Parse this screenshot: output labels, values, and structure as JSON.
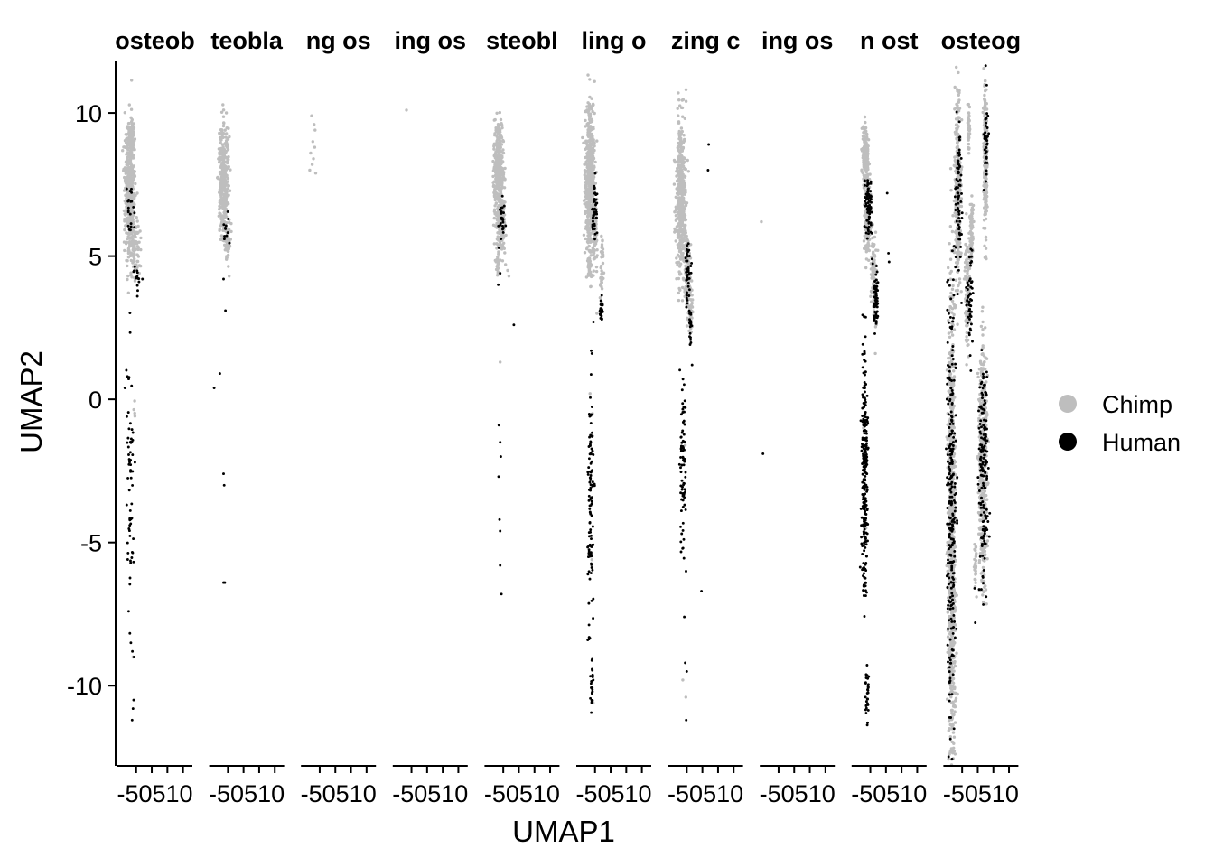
{
  "chart_data": {
    "type": "scatter",
    "title": "",
    "xlabel": "UMAP1",
    "ylabel": "UMAP2",
    "facets": [
      "osteob",
      "teobla",
      "ng os",
      "ing os",
      "steobl",
      "ling o",
      "zing c",
      "ing os",
      "n ost",
      "osteog"
    ],
    "x_ticks": [
      -5,
      0,
      5,
      10
    ],
    "x_tick_text": "-50510",
    "y_ticks": [
      -10,
      -5,
      0,
      5,
      10
    ],
    "y_tick_labels": [
      "-10",
      "-5",
      "0",
      "5",
      "10"
    ],
    "ylim": [
      -12.8,
      11.8
    ],
    "xlim": [
      -11,
      13
    ],
    "legend": {
      "position": "right",
      "entries": [
        {
          "name": "Chimp",
          "color": "#BEBEBE"
        },
        {
          "name": "Human",
          "color": "#000000"
        }
      ]
    },
    "series": [
      {
        "name": "Chimp",
        "color": "#BEBEBE",
        "panels": [
          {
            "clusters": [
              [
                -7,
                7.2,
                1.4,
                1.9,
                420
              ],
              [
                -5.5,
                5.4,
                1.5,
                0.9,
                90
              ],
              [
                -6.5,
                9.2,
                0.8,
                0.5,
                60
              ],
              [
                -5.8,
                -0.3,
                0.4,
                0.6,
                4
              ]
            ],
            "points": [
              [
                -4.6,
                5.8
              ],
              [
                -4.0,
                4.4
              ],
              [
                -6.0,
                -9.0
              ]
            ]
          },
          {
            "clusters": [
              [
                -6.3,
                7.6,
                1.3,
                1.7,
                360
              ],
              [
                -5.0,
                5.6,
                0.9,
                0.8,
                60
              ]
            ],
            "points": [
              [
                -4.6,
                4.3
              ]
            ]
          },
          {
            "clusters": [],
            "points": [
              [
                -7.6,
                9.9
              ],
              [
                -6.8,
                9.6
              ],
              [
                -6.5,
                9.4
              ],
              [
                -7.2,
                9.0
              ],
              [
                -7.9,
                8.6
              ],
              [
                -6.6,
                8.8
              ],
              [
                -7.4,
                8.2
              ],
              [
                -6.3,
                7.9
              ],
              [
                -8.2,
                8.0
              ],
              [
                -7.0,
                8.4
              ]
            ]
          },
          {
            "clusters": [],
            "points": [
              [
                -6.6,
                10.1
              ]
            ]
          },
          {
            "clusters": [
              [
                -6.4,
                7.8,
                1.3,
                1.8,
                380
              ],
              [
                -5.3,
                6.0,
                0.9,
                0.9,
                70
              ],
              [
                -6.8,
                4.8,
                0.6,
                0.5,
                25
              ]
            ],
            "points": [
              [
                -6.0,
                1.3
              ],
              [
                -3.6,
                4.5
              ],
              [
                -3.2,
                4.3
              ]
            ]
          },
          {
            "clusters": [
              [
                -6.6,
                7.8,
                1.3,
                2.2,
                520
              ],
              [
                -5.0,
                5.8,
                0.8,
                1.0,
                70
              ],
              [
                -2.8,
                4.6,
                0.5,
                1.0,
                40
              ],
              [
                -6.6,
                4.6,
                0.6,
                0.5,
                30
              ]
            ],
            "points": [
              [
                -5.8,
                -0.5
              ],
              [
                -6.6,
                0.2
              ],
              [
                -4.4,
                3.0
              ],
              [
                -6.0,
                -5.6
              ],
              [
                -5.6,
                -10.6
              ]
            ]
          },
          {
            "clusters": [
              [
                -6.9,
                7.2,
                1.3,
                2.4,
                460
              ],
              [
                -4.9,
                4.4,
                0.9,
                1.1,
                110
              ],
              [
                -3.8,
                3.2,
                0.6,
                0.8,
                60
              ]
            ],
            "points": [
              [
                -6.0,
                -0.8
              ],
              [
                -5.5,
                -1.6
              ],
              [
                -6.3,
                -9.8
              ],
              [
                -5.3,
                -10.4
              ]
            ]
          },
          {
            "clusters": [],
            "points": [
              [
                -10.5,
                6.2
              ]
            ]
          },
          {
            "clusters": [
              [
                -6.6,
                8.6,
                0.9,
                0.8,
                150
              ],
              [
                -6.0,
                6.5,
                0.8,
                1.2,
                140
              ],
              [
                -4.0,
                4.6,
                0.8,
                1.2,
                70
              ],
              [
                -3.4,
                3.2,
                0.5,
                0.6,
                30
              ]
            ],
            "points": [
              [
                -4.2,
                6.1
              ],
              [
                -2.6,
                5.2
              ],
              [
                -3.4,
                1.6
              ],
              [
                -6.4,
                -4.5
              ],
              [
                -7.2,
                -1.0
              ]
            ]
          },
          {
            "clusters": [
              [
                -8.3,
                -4.5,
                1.0,
                7.0,
                900
              ],
              [
                -6.3,
                7.2,
                0.8,
                2.8,
                320
              ],
              [
                -3.3,
                3.8,
                0.7,
                1.6,
                120
              ],
              [
                2.5,
                8.3,
                0.5,
                2.2,
                240
              ],
              [
                1.7,
                -2.3,
                1.1,
                3.4,
                480
              ],
              [
                -1.9,
                5.9,
                0.5,
                1.0,
                70
              ],
              [
                -2.9,
                9.5,
                0.3,
                0.8,
                40
              ],
              [
                -0.8,
                -5.7,
                0.3,
                0.7,
                25
              ]
            ],
            "points": [
              [
                -7.3,
                10.9
              ],
              [
                -8.2,
                -11.5
              ],
              [
                -0.4,
                -6.9
              ]
            ]
          }
        ]
      },
      {
        "name": "Human",
        "color": "#000000",
        "panels": [
          {
            "clusters": [
              [
                -6.9,
                -2.7,
                0.9,
                4.1,
                60
              ],
              [
                -6.5,
                6.5,
                1.0,
                0.9,
                20
              ],
              [
                -4.8,
                4.3,
                0.8,
                0.4,
                12
              ]
            ],
            "points": [
              [
                -6.7,
                -8.5
              ],
              [
                -6.2,
                -8.8
              ],
              [
                -5.7,
                -9.0
              ],
              [
                -5.8,
                -10.5
              ],
              [
                -6.3,
                -11.2
              ],
              [
                -6.0,
                -10.8
              ],
              [
                -7.4,
                -7.4
              ],
              [
                -8.6,
                0.4
              ],
              [
                -8.0,
                -0.6
              ],
              [
                -7.8,
                0.8
              ],
              [
                -5.4,
                -2.2
              ],
              [
                -4.1,
                4.1
              ],
              [
                -3.0,
                4.2
              ],
              [
                -4.6,
                3.6
              ]
            ]
          },
          {
            "clusters": [
              [
                -5.6,
                5.8,
                0.8,
                0.6,
                10
              ]
            ],
            "points": [
              [
                -9.4,
                0.4
              ],
              [
                -7.6,
                0.9
              ],
              [
                -6.4,
                -2.6
              ],
              [
                -6.2,
                -3.0
              ],
              [
                -6.4,
                -6.4
              ],
              [
                -6.0,
                -6.4
              ],
              [
                -5.8,
                3.1
              ],
              [
                -6.4,
                4.2
              ],
              [
                -4.9,
                6.3
              ]
            ]
          },
          {
            "clusters": [],
            "points": []
          },
          {
            "clusters": [],
            "points": []
          },
          {
            "clusters": [
              [
                -5.4,
                6.3,
                0.8,
                0.9,
                25
              ]
            ],
            "points": [
              [
                -6.4,
                -0.9
              ],
              [
                -6.0,
                -1.5
              ],
              [
                -5.8,
                -2.0
              ],
              [
                -6.5,
                -2.7
              ],
              [
                -6.2,
                -4.2
              ],
              [
                -6.0,
                -4.6
              ],
              [
                -6.0,
                -5.8
              ],
              [
                -5.6,
                -6.8
              ],
              [
                -6.0,
                4.4
              ],
              [
                -6.6,
                4.0
              ],
              [
                -1.6,
                2.6
              ]
            ]
          },
          {
            "clusters": [
              [
                -6.4,
                -3.5,
                0.8,
                4.0,
                110
              ],
              [
                -6.0,
                -9.9,
                0.4,
                1.0,
                25
              ],
              [
                -5.0,
                6.6,
                0.8,
                1.0,
                40
              ],
              [
                -3.0,
                3.1,
                0.5,
                0.4,
                25
              ]
            ],
            "points": [
              [
                -5.5,
                2.7
              ],
              [
                -6.0,
                1.6
              ]
            ]
          },
          {
            "clusters": [
              [
                -6.2,
                -2.3,
                0.8,
                2.9,
                80
              ],
              [
                -4.6,
                4.3,
                0.8,
                0.9,
                40
              ],
              [
                -3.8,
                2.6,
                0.4,
                0.5,
                20
              ]
            ],
            "points": [
              [
                -5.8,
                -7.6
              ],
              [
                -5.5,
                -9.2
              ],
              [
                -5.0,
                -9.5
              ],
              [
                -5.2,
                -11.2
              ],
              [
                2.0,
                8.9
              ],
              [
                1.8,
                8.0
              ],
              [
                -0.3,
                -6.7
              ],
              [
                -3.3,
                1.2
              ]
            ]
          },
          {
            "clusters": [],
            "points": [
              [
                -10.0,
                -1.9
              ]
            ]
          },
          {
            "clusters": [
              [
                -6.8,
                -2.5,
                0.9,
                3.6,
                260
              ],
              [
                -5.6,
                6.8,
                0.9,
                0.9,
                80
              ],
              [
                -3.2,
                3.4,
                0.7,
                0.9,
                60
              ],
              [
                -6.0,
                -10.0,
                0.5,
                1.0,
                30
              ]
            ],
            "points": [
              [
                0.4,
                7.2
              ],
              [
                1.0,
                4.8
              ],
              [
                0.8,
                5.1
              ],
              [
                -4.5,
                4.9
              ],
              [
                -4.8,
                7.6
              ]
            ]
          },
          {
            "clusters": [
              [
                -8.4,
                -3.8,
                1.2,
                7.3,
                260
              ],
              [
                1.9,
                -2.3,
                1.3,
                3.3,
                160
              ],
              [
                -6.1,
                7.1,
                0.8,
                2.6,
                70
              ],
              [
                -2.5,
                3.6,
                0.9,
                1.6,
                50
              ],
              [
                2.7,
                9.1,
                0.6,
                1.6,
                40
              ]
            ],
            "points": [
              [
                -1.0,
                -6.6
              ],
              [
                -0.8,
                -7.8
              ],
              [
                -1.8,
                5.2
              ],
              [
                -2.2,
                1.0
              ]
            ]
          }
        ]
      }
    ]
  }
}
